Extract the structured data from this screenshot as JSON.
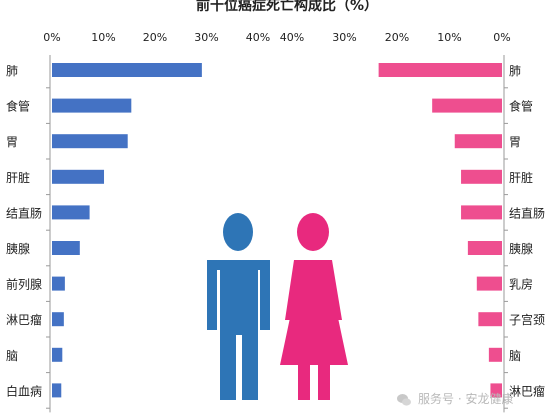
{
  "chart_data": {
    "type": "bar",
    "title": "前十位癌症死亡构成比（%）",
    "xlim": [
      0,
      40
    ],
    "ticks": [
      {
        "value": 0,
        "label": "0%"
      },
      {
        "value": 10,
        "label": "10%"
      },
      {
        "value": 20,
        "label": "20%"
      },
      {
        "value": 30,
        "label": "30%"
      },
      {
        "value": 40,
        "label": "40%"
      }
    ],
    "panels": [
      {
        "side": "left",
        "color": "#4472C4",
        "icon": "male-icon",
        "categories": [
          "肺",
          "食管",
          "胃",
          "肝脏",
          "结直肠",
          "胰腺",
          "前列腺",
          "淋巴瘤",
          "脑",
          "白血病"
        ],
        "values": [
          29.1,
          15.4,
          14.7,
          10.1,
          7.3,
          5.4,
          2.5,
          2.3,
          2.0,
          1.8
        ]
      },
      {
        "side": "right",
        "color": "#EE4E8F",
        "icon": "female-icon",
        "categories": [
          "肺",
          "食管",
          "胃",
          "肝脏",
          "结直肠",
          "胰腺",
          "乳房",
          "子宫颈",
          "脑",
          "淋巴瘤"
        ],
        "values": [
          23.5,
          13.3,
          9.0,
          7.8,
          7.8,
          6.5,
          4.8,
          4.5,
          2.5,
          2.2
        ]
      }
    ]
  },
  "watermark": {
    "text": "服务号 · 安龙健康",
    "icon": "wechat-icon"
  }
}
